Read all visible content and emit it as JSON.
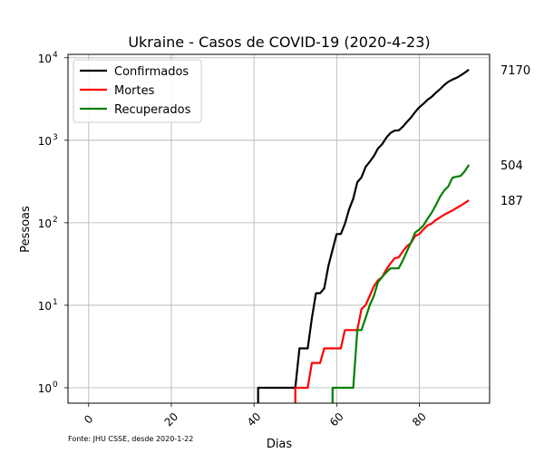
{
  "chart_data": {
    "type": "line",
    "title": "Ukraine - Casos de COVID-19 (2020-4-23)",
    "xlabel": "Dias",
    "ylabel": "Pessoas",
    "xlim": [
      -5,
      97
    ],
    "ylim": [
      0.65,
      11000
    ],
    "yscale": "log",
    "grid": true,
    "legend_position": "top-left",
    "x_ticks": [
      0,
      20,
      40,
      60,
      80
    ],
    "x_tick_labels": [
      "0",
      "20",
      "40",
      "60",
      "80"
    ],
    "y_ticks": [
      1,
      10,
      100,
      1000,
      10000
    ],
    "y_tick_labels": [
      {
        "base": "10",
        "exp": "0"
      },
      {
        "base": "10",
        "exp": "1"
      },
      {
        "base": "10",
        "exp": "2"
      },
      {
        "base": "10",
        "exp": "3"
      },
      {
        "base": "10",
        "exp": "4"
      }
    ],
    "source_note": "Fonte: JHU CSSE, desde 2020-1-22",
    "series": [
      {
        "name": "Confirmados",
        "color": "#000000",
        "end_label": "7170",
        "points": [
          [
            41,
            0.5
          ],
          [
            41,
            1
          ],
          [
            50,
            1
          ],
          [
            51,
            3
          ],
          [
            53,
            3
          ],
          [
            54,
            7
          ],
          [
            55,
            14
          ],
          [
            56,
            14
          ],
          [
            57,
            16
          ],
          [
            58,
            30
          ],
          [
            59,
            47
          ],
          [
            60,
            73
          ],
          [
            61,
            73
          ],
          [
            62,
            97
          ],
          [
            63,
            145
          ],
          [
            64,
            196
          ],
          [
            65,
            310
          ],
          [
            66,
            356
          ],
          [
            67,
            475
          ],
          [
            68,
            549
          ],
          [
            69,
            645
          ],
          [
            70,
            794
          ],
          [
            71,
            897
          ],
          [
            72,
            1072
          ],
          [
            73,
            1225
          ],
          [
            74,
            1308
          ],
          [
            75,
            1319
          ],
          [
            76,
            1462
          ],
          [
            77,
            1668
          ],
          [
            78,
            1892
          ],
          [
            79,
            2203
          ],
          [
            80,
            2511
          ],
          [
            81,
            2777
          ],
          [
            82,
            3102
          ],
          [
            83,
            3372
          ],
          [
            84,
            3764
          ],
          [
            85,
            4161
          ],
          [
            86,
            4662
          ],
          [
            87,
            5106
          ],
          [
            88,
            5449
          ],
          [
            89,
            5710
          ],
          [
            90,
            6125
          ],
          [
            91,
            6592
          ],
          [
            92,
            7170
          ]
        ]
      },
      {
        "name": "Mortes",
        "color": "#ff0000",
        "end_label": "187",
        "points": [
          [
            50,
            0.5
          ],
          [
            50,
            1
          ],
          [
            53,
            1
          ],
          [
            54,
            2
          ],
          [
            56,
            2
          ],
          [
            57,
            3
          ],
          [
            61,
            3
          ],
          [
            62,
            5
          ],
          [
            65,
            5
          ],
          [
            66,
            9
          ],
          [
            67,
            10
          ],
          [
            68,
            13
          ],
          [
            69,
            17
          ],
          [
            70,
            20
          ],
          [
            71,
            22
          ],
          [
            72,
            27
          ],
          [
            73,
            32
          ],
          [
            74,
            37
          ],
          [
            75,
            38
          ],
          [
            76,
            45
          ],
          [
            77,
            52
          ],
          [
            78,
            57
          ],
          [
            79,
            69
          ],
          [
            80,
            73
          ],
          [
            81,
            83
          ],
          [
            82,
            93
          ],
          [
            83,
            98
          ],
          [
            84,
            108
          ],
          [
            85,
            116
          ],
          [
            86,
            125
          ],
          [
            87,
            133
          ],
          [
            88,
            141
          ],
          [
            89,
            151
          ],
          [
            90,
            161
          ],
          [
            91,
            174
          ],
          [
            92,
            187
          ]
        ]
      },
      {
        "name": "Recuperados",
        "color": "#008000",
        "end_label": "504",
        "points": [
          [
            59,
            0.5
          ],
          [
            59,
            1
          ],
          [
            64,
            1
          ],
          [
            65,
            5
          ],
          [
            66,
            5
          ],
          [
            67,
            7
          ],
          [
            68,
            10
          ],
          [
            69,
            13
          ],
          [
            70,
            19
          ],
          [
            71,
            22
          ],
          [
            72,
            25
          ],
          [
            73,
            28
          ],
          [
            74,
            28
          ],
          [
            75,
            28
          ],
          [
            76,
            35
          ],
          [
            77,
            45
          ],
          [
            78,
            58
          ],
          [
            79,
            76
          ],
          [
            80,
            83
          ],
          [
            81,
            93
          ],
          [
            82,
            112
          ],
          [
            83,
            133
          ],
          [
            84,
            163
          ],
          [
            85,
            206
          ],
          [
            86,
            246
          ],
          [
            87,
            275
          ],
          [
            88,
            351
          ],
          [
            89,
            363
          ],
          [
            90,
            369
          ],
          [
            91,
            421
          ],
          [
            92,
            504
          ]
        ]
      }
    ]
  }
}
